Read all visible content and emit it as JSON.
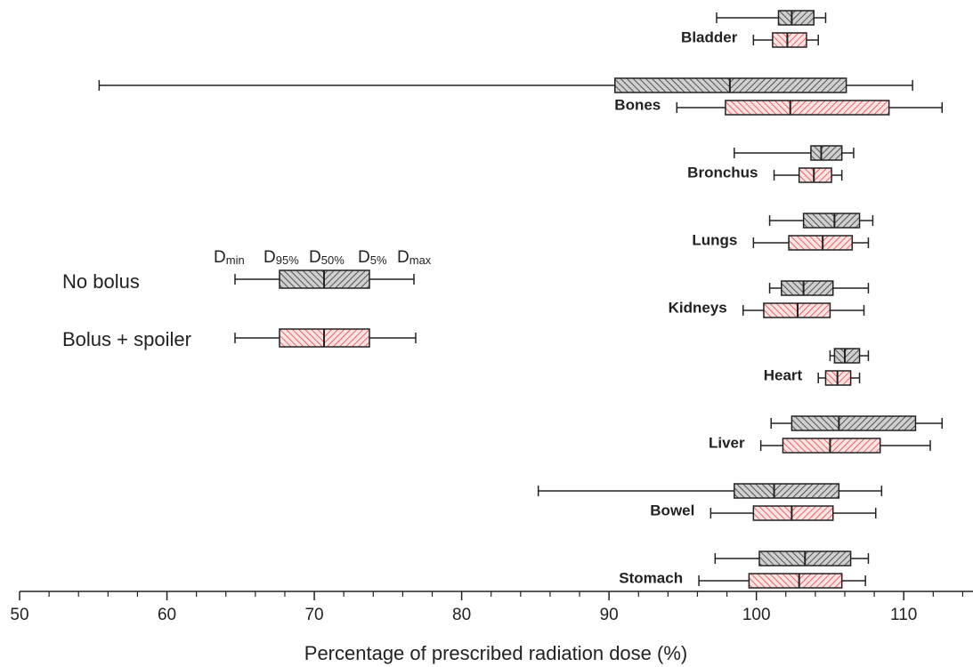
{
  "chart_data": {
    "type": "boxplot",
    "orientation": "horizontal",
    "x_label": "Percentage of prescribed radiation dose (%)",
    "categories": [
      "Bladder",
      "Bones",
      "Bronchus",
      "Lungs",
      "Kidneys",
      "Heart",
      "Liver",
      "Bowel",
      "Stomach"
    ],
    "xlim": [
      50,
      114.7
    ],
    "xticks": [
      50,
      60,
      70,
      80,
      90,
      100,
      110
    ],
    "xminor_ticks": [
      52,
      54,
      56,
      58,
      62,
      64,
      66,
      68,
      72,
      74,
      76,
      78,
      82,
      84,
      86,
      88,
      92,
      94,
      96,
      98,
      102,
      104,
      106,
      108,
      112,
      114
    ],
    "legend_stat_labels": [
      {
        "base": "D",
        "sub": "min"
      },
      {
        "base": "D",
        "sub": "95%"
      },
      {
        "base": "D",
        "sub": "50%"
      },
      {
        "base": "D",
        "sub": "5%"
      },
      {
        "base": "D",
        "sub": "max"
      }
    ],
    "series": [
      {
        "name": "No bolus",
        "color": "#333333",
        "values": [
          {
            "min": 97.3,
            "low": 101.5,
            "median": 102.4,
            "high": 103.9,
            "max": 104.7
          },
          {
            "min": 55.4,
            "low": 90.4,
            "median": 98.2,
            "high": 106.1,
            "max": 110.6
          },
          {
            "min": 98.5,
            "low": 103.7,
            "median": 104.4,
            "high": 105.8,
            "max": 106.6
          },
          {
            "min": 100.9,
            "low": 103.2,
            "median": 105.3,
            "high": 107.0,
            "max": 107.9
          },
          {
            "min": 100.9,
            "low": 101.7,
            "median": 103.2,
            "high": 105.2,
            "max": 107.6
          },
          {
            "min": 105.0,
            "low": 105.3,
            "median": 106.0,
            "high": 107.0,
            "max": 107.6
          },
          {
            "min": 101.0,
            "low": 102.4,
            "median": 105.6,
            "high": 110.8,
            "max": 112.6
          },
          {
            "min": 85.2,
            "low": 98.5,
            "median": 101.2,
            "high": 105.6,
            "max": 108.5
          },
          {
            "min": 97.2,
            "low": 100.2,
            "median": 103.3,
            "high": 106.4,
            "max": 107.6
          }
        ]
      },
      {
        "name": "Bolus + spoiler",
        "color": "#e03030",
        "values": [
          {
            "min": 99.8,
            "low": 101.1,
            "median": 102.1,
            "high": 103.4,
            "max": 104.2
          },
          {
            "min": 94.6,
            "low": 97.9,
            "median": 102.3,
            "high": 109.0,
            "max": 112.6
          },
          {
            "min": 101.2,
            "low": 102.9,
            "median": 103.9,
            "high": 105.1,
            "max": 105.8
          },
          {
            "min": 99.8,
            "low": 102.2,
            "median": 104.5,
            "high": 106.5,
            "max": 107.6
          },
          {
            "min": 99.1,
            "low": 100.5,
            "median": 102.8,
            "high": 105.0,
            "max": 107.3
          },
          {
            "min": 104.2,
            "low": 104.7,
            "median": 105.5,
            "high": 106.4,
            "max": 107.0
          },
          {
            "min": 100.3,
            "low": 101.8,
            "median": 105.0,
            "high": 108.4,
            "max": 111.8
          },
          {
            "min": 96.9,
            "low": 99.8,
            "median": 102.4,
            "high": 105.2,
            "max": 108.1
          },
          {
            "min": 96.1,
            "low": 99.5,
            "median": 102.9,
            "high": 105.8,
            "max": 107.4
          }
        ]
      }
    ]
  }
}
